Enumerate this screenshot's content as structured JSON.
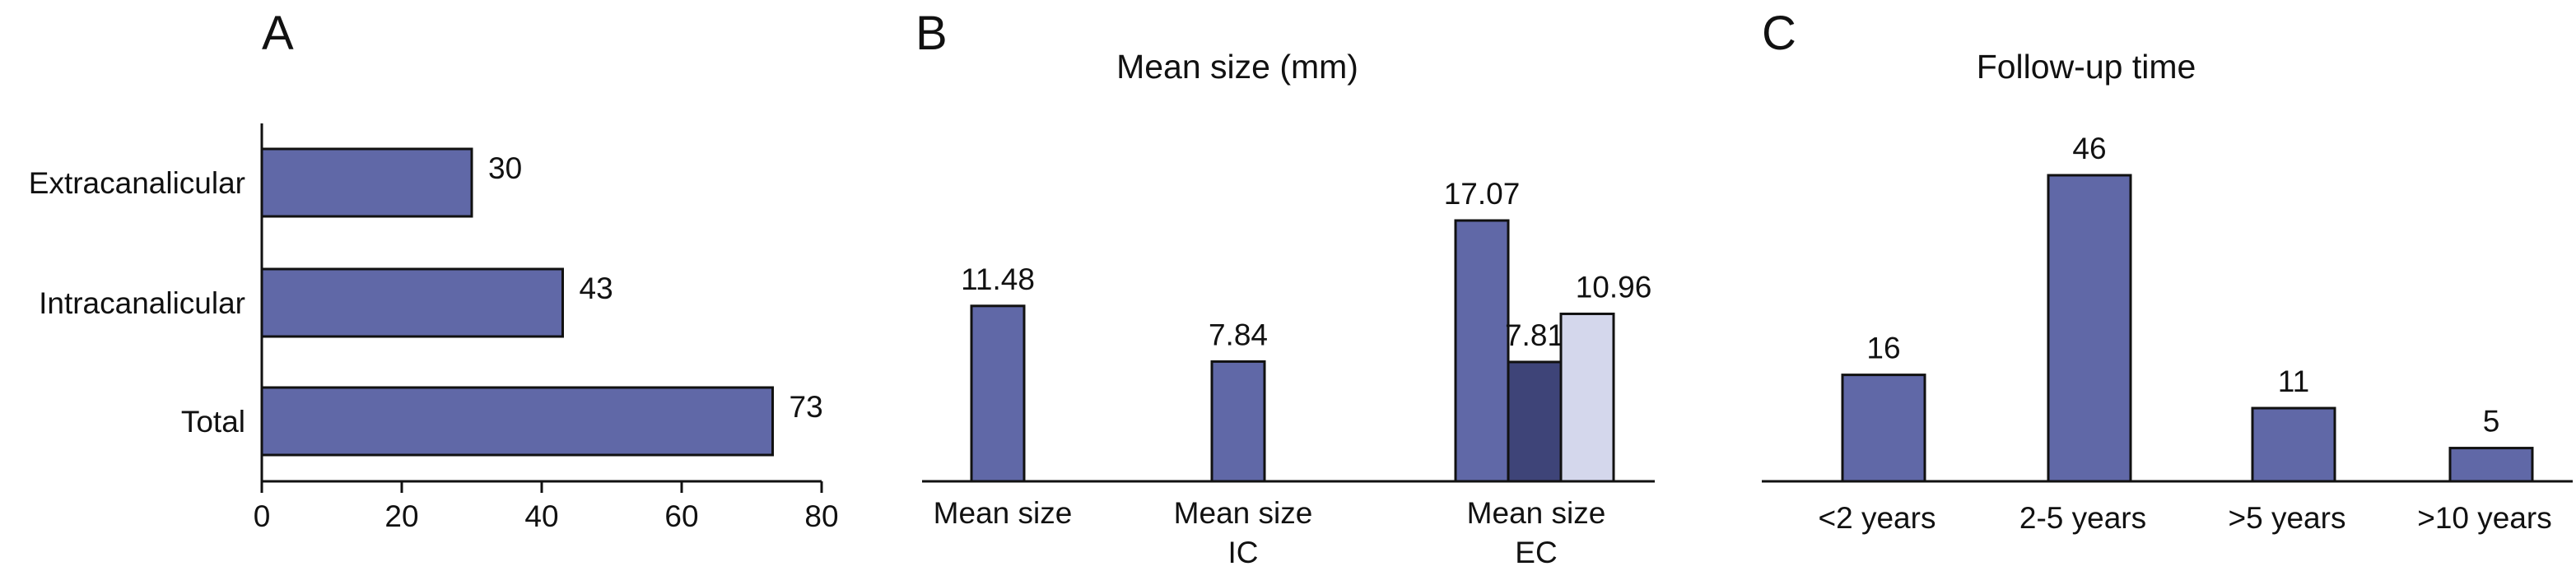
{
  "colors": {
    "bar": "#6068a7",
    "bar_dark": "#3e4478",
    "bar_light": "#d4d7ec",
    "outline": "#111111"
  },
  "chart_data": [
    {
      "panel": "A",
      "type": "bar",
      "orientation": "horizontal",
      "title": "",
      "categories": [
        "Extracanalicular",
        "Intracanalicular",
        "Total"
      ],
      "values": [
        30,
        43,
        73
      ],
      "data_labels": [
        "30",
        "43",
        "73"
      ],
      "xlim": [
        0,
        80
      ],
      "xticks": [
        "0",
        "20",
        "40",
        "60",
        "80"
      ],
      "grid": false
    },
    {
      "panel": "B",
      "type": "bar",
      "title": "Mean size (mm)",
      "categories": [
        {
          "line1": "Mean size",
          "line2": ""
        },
        {
          "line1": "Mean size",
          "line2": "IC"
        },
        {
          "line1": "Mean size",
          "line2": "EC"
        }
      ],
      "bars": [
        {
          "category": 0,
          "value": 11.48,
          "label": "11.48",
          "shade": "bar"
        },
        {
          "category": 1,
          "value": 7.84,
          "label": "7.84",
          "shade": "bar"
        },
        {
          "category": 2,
          "value": 17.07,
          "label": "17.07",
          "shade": "bar"
        },
        {
          "category": 2,
          "value": 7.81,
          "label": "7.81",
          "shade": "bar_dark"
        },
        {
          "category": 2,
          "value": 10.96,
          "label": "10.96",
          "shade": "bar_light"
        }
      ],
      "ylim": [
        0,
        20
      ],
      "grid": false
    },
    {
      "panel": "C",
      "type": "bar",
      "title": "Follow-up time",
      "categories": [
        "<2 years",
        "2-5 years",
        ">5 years",
        ">10 years"
      ],
      "values": [
        16,
        46,
        11,
        5
      ],
      "data_labels": [
        "16",
        "46",
        "11",
        "5"
      ],
      "ylim": [
        0,
        50
      ],
      "grid": false
    }
  ]
}
